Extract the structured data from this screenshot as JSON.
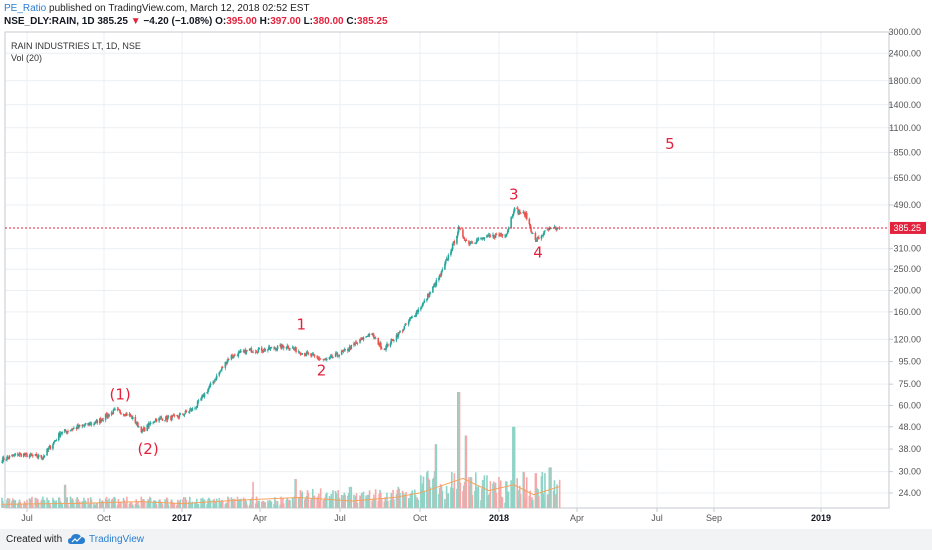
{
  "header": {
    "user": "PE_Ratio",
    "publish_text": "published on TradingView.com, March 12, 2018 02:52 EST",
    "symbol": "NSE_DLY:RAIN, 1D",
    "last": "385.25",
    "change_arrow": "▼",
    "change": "−4.20 (−1.08%)",
    "o_label": "O:",
    "o_value": "395.00",
    "h_label": "H:",
    "h_value": "397.00",
    "l_label": "L:",
    "l_value": "380.00",
    "c_label": "C:",
    "c_value": "385.25"
  },
  "legend": {
    "name": "RAIN INDUSTRIES LT, 1D, NSE",
    "volume": "Vol (20)"
  },
  "footer": {
    "created_with": "Created with",
    "brand": "TradingView",
    "logo_icon": "tradingview-cloud-icon"
  },
  "colors": {
    "up": "#26a69a",
    "down": "#ef5350",
    "up_volume": "#8fd3c6",
    "down_volume": "#f5a9a9",
    "volume_ma": "#f5a35a",
    "price_line": "#e3223d",
    "annotation": "#e3223d",
    "grid": "#eceff2",
    "axis_text": "#555555"
  },
  "chart_data": {
    "type": "candlestick",
    "y_scale": "log",
    "ylim": [
      20.5,
      3000
    ],
    "price_ticks": [
      "3000.00",
      "2400.00",
      "1800.00",
      "1400.00",
      "1100.00",
      "850.00",
      "650.00",
      "490.00",
      "385.25",
      "310.00",
      "250.00",
      "200.00",
      "160.00",
      "120.00",
      "95.00",
      "75.00",
      "60.00",
      "48.00",
      "38.00",
      "30.00",
      "24.00"
    ],
    "time_labels": [
      "Jul",
      "Oct",
      "2017",
      "Apr",
      "Jul",
      "Oct",
      "2018",
      "Apr",
      "Jul",
      "Sep",
      "2019"
    ],
    "last_price": 385.25,
    "last_price_label": "385.25",
    "price_path": [
      {
        "date": "2016-06-01",
        "close": 34
      },
      {
        "date": "2016-06-20",
        "close": 36
      },
      {
        "date": "2016-07-20",
        "close": 35
      },
      {
        "date": "2016-08-10",
        "close": 45
      },
      {
        "date": "2016-09-01",
        "close": 48
      },
      {
        "date": "2016-09-20",
        "close": 50
      },
      {
        "date": "2016-10-15",
        "close": 57
      },
      {
        "date": "2016-11-01",
        "close": 54
      },
      {
        "date": "2016-11-15",
        "close": 46
      },
      {
        "date": "2016-12-01",
        "close": 52
      },
      {
        "date": "2016-12-25",
        "close": 53
      },
      {
        "date": "2017-01-15",
        "close": 58
      },
      {
        "date": "2017-02-01",
        "close": 72
      },
      {
        "date": "2017-02-25",
        "close": 100
      },
      {
        "date": "2017-03-20",
        "close": 107
      },
      {
        "date": "2017-04-10",
        "close": 108
      },
      {
        "date": "2017-05-01",
        "close": 112
      },
      {
        "date": "2017-05-20",
        "close": 104
      },
      {
        "date": "2017-06-15",
        "close": 96
      },
      {
        "date": "2017-07-10",
        "close": 108
      },
      {
        "date": "2017-08-05",
        "close": 128
      },
      {
        "date": "2017-08-20",
        "close": 108
      },
      {
        "date": "2017-09-10",
        "close": 132
      },
      {
        "date": "2017-10-05",
        "close": 175
      },
      {
        "date": "2017-10-25",
        "close": 235
      },
      {
        "date": "2017-11-10",
        "close": 335
      },
      {
        "date": "2017-11-15",
        "close": 382
      },
      {
        "date": "2017-11-25",
        "close": 330
      },
      {
        "date": "2017-12-20",
        "close": 350
      },
      {
        "date": "2018-01-10",
        "close": 365
      },
      {
        "date": "2018-01-18",
        "close": 470
      },
      {
        "date": "2018-02-01",
        "close": 440
      },
      {
        "date": "2018-02-12",
        "close": 335
      },
      {
        "date": "2018-02-25",
        "close": 375
      },
      {
        "date": "2018-03-12",
        "close": 385
      }
    ],
    "volume_ma": [
      {
        "date": "2016-06-01",
        "v": 1.3
      },
      {
        "date": "2016-09-01",
        "v": 1.6
      },
      {
        "date": "2016-11-15",
        "v": 2.2
      },
      {
        "date": "2017-01-01",
        "v": 1.5
      },
      {
        "date": "2017-03-01",
        "v": 2.6
      },
      {
        "date": "2017-05-15",
        "v": 3.6
      },
      {
        "date": "2017-07-15",
        "v": 2.4
      },
      {
        "date": "2017-09-01",
        "v": 3.6
      },
      {
        "date": "2017-10-01",
        "v": 5.2
      },
      {
        "date": "2017-11-20",
        "v": 10.2
      },
      {
        "date": "2017-12-20",
        "v": 6.0
      },
      {
        "date": "2018-01-18",
        "v": 8.0
      },
      {
        "date": "2018-02-10",
        "v": 4.6
      },
      {
        "date": "2018-03-12",
        "v": 7.4
      }
    ],
    "volume_spikes": [
      {
        "date": "2016-08-15",
        "v": 8
      },
      {
        "date": "2017-03-25",
        "v": 9
      },
      {
        "date": "2017-05-12",
        "v": 10
      },
      {
        "date": "2017-10-20",
        "v": 22
      },
      {
        "date": "2017-11-15",
        "v": 40
      },
      {
        "date": "2017-11-24",
        "v": 25
      },
      {
        "date": "2018-01-18",
        "v": 28
      },
      {
        "date": "2018-02-12",
        "v": 12
      },
      {
        "date": "2018-03-01",
        "v": 14
      }
    ],
    "annotations": [
      {
        "text": "(1)",
        "date": "2016-10-20",
        "price": 64
      },
      {
        "text": "(2)",
        "date": "2016-11-22",
        "price": 36
      },
      {
        "text": "1",
        "date": "2017-05-18",
        "price": 133
      },
      {
        "text": "2",
        "date": "2017-06-10",
        "price": 82
      },
      {
        "text": "3",
        "date": "2018-01-18",
        "price": 520
      },
      {
        "text": "4",
        "date": "2018-02-15",
        "price": 283
      },
      {
        "text": "5",
        "date": "2018-07-15",
        "price": 880
      }
    ]
  }
}
